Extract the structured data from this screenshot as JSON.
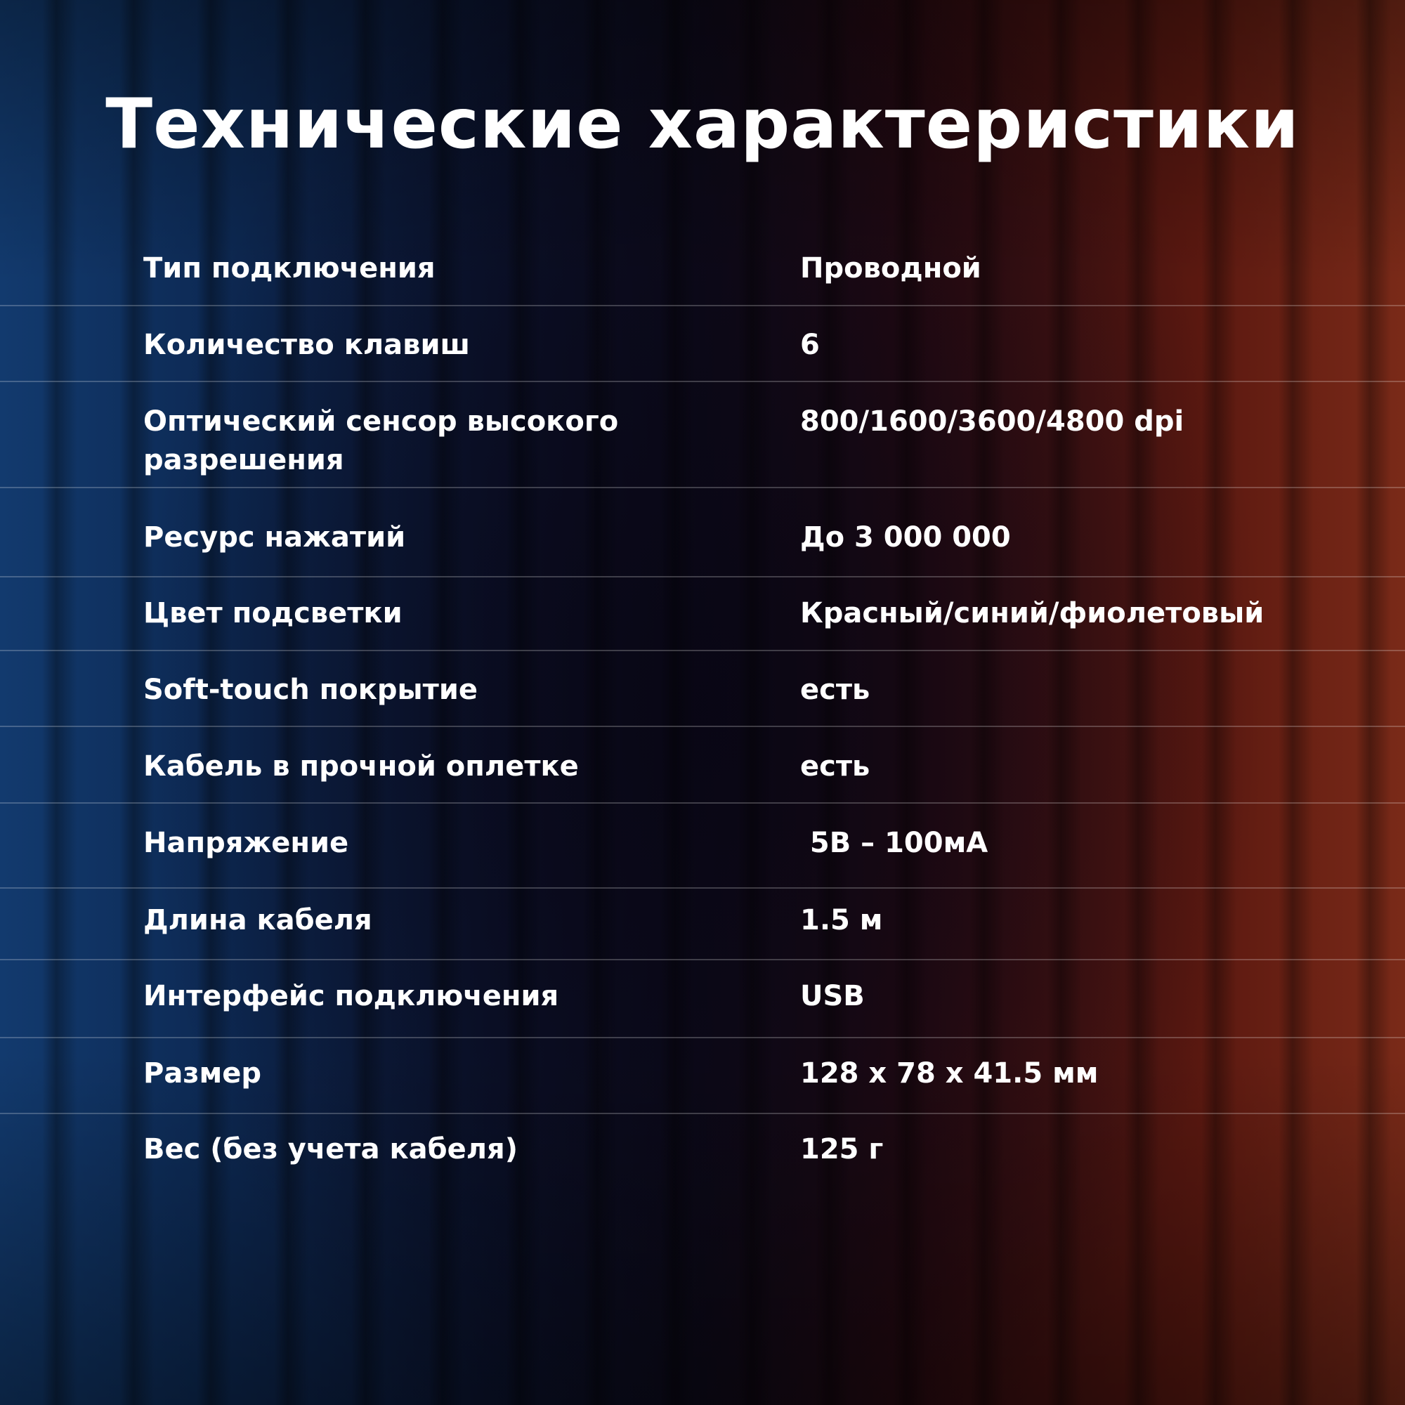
{
  "title": "Технические характеристики",
  "specs": [
    {
      "label": "Тип подключения",
      "value": "Проводной"
    },
    {
      "label": "Количество клавиш",
      "value": "6"
    },
    {
      "label": "Оптический сенсор высокого разрешения",
      "value": "800/1600/3600/4800 dpi"
    },
    {
      "label": "Ресурс нажатий",
      "value": "До 3 000 000"
    },
    {
      "label": "Цвет подсветки",
      "value": "Красный/синий/фиолетовый"
    },
    {
      "label": "Soft-touch покрытие",
      "value": "есть"
    },
    {
      "label": "Кабель в прочной оплетке",
      "value": "есть"
    },
    {
      "label": "Напряжение",
      "value": " 5В – 100мА"
    },
    {
      "label": "Длина кабеля",
      "value": "1.5 м"
    },
    {
      "label": "Интерфейс подключения",
      "value": "USB"
    },
    {
      "label": "Размер",
      "value": "128 x 78 x 41.5 мм"
    },
    {
      "label": "Вес (без учета кабеля)",
      "value": "125 г"
    }
  ],
  "colors": {
    "left_glow": "#123a6e",
    "right_glow": "#7a2a18",
    "text": "#ffffff"
  }
}
